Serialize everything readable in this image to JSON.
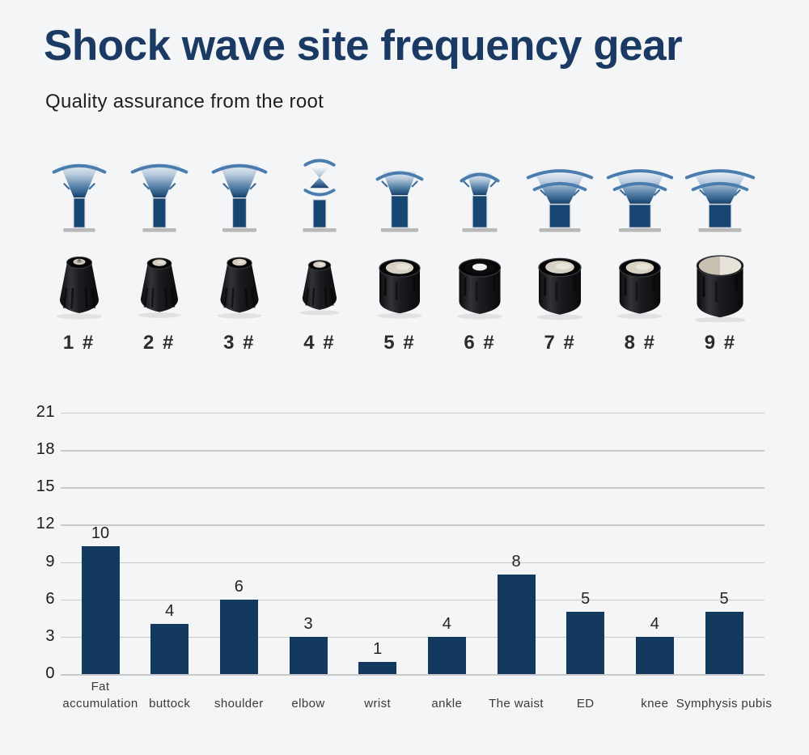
{
  "colors": {
    "background": "#f4f5f6",
    "title": "#1b3a63",
    "subtitle": "#1f1f1f",
    "bar": "#14395f",
    "gridline": "#c9c9c9",
    "axis_text": "#1a1a1a",
    "arc_blue": "#4a7cae",
    "fan_dark": "#16426e",
    "fan_light": "#f3f7fa",
    "stem_navy": "#174673",
    "base_gray": "#b8b8b8",
    "knob_black": "#1a1a1c",
    "metal_face": "#d8d2c4"
  },
  "header": {
    "title": "Shock wave site frequency gear",
    "subtitle": "Quality assurance from the root"
  },
  "heads": [
    {
      "label": "1 #",
      "wave": {
        "name": "narrow-spread-wave-icon",
        "type": "fan",
        "arcs": 1,
        "span": 64,
        "fanTop": 48,
        "fanBot": 14,
        "fanH": 40,
        "stemW": 14,
        "stemH": 37
      },
      "knob": {
        "shape": "tapered",
        "tip": "metal-point",
        "scale": 1.0
      }
    },
    {
      "label": "2 #",
      "wave": {
        "name": "narrow-spread-wave-icon",
        "type": "fan",
        "arcs": 1,
        "span": 68,
        "fanTop": 52,
        "fanBot": 15,
        "fanH": 40,
        "stemW": 16,
        "stemH": 37
      },
      "knob": {
        "shape": "tapered",
        "tip": "metal-small",
        "scale": 0.96
      }
    },
    {
      "label": "3 #",
      "wave": {
        "name": "narrow-spread-wave-icon",
        "type": "fan",
        "arcs": 1,
        "span": 66,
        "fanTop": 50,
        "fanBot": 16,
        "fanH": 40,
        "stemW": 17,
        "stemH": 37
      },
      "knob": {
        "shape": "tapered",
        "tip": "metal-small",
        "scale": 0.98
      }
    },
    {
      "label": "4 #",
      "wave": {
        "name": "focused-wave-icon",
        "type": "focused",
        "stemW": 16,
        "stemH": 35
      },
      "knob": {
        "shape": "tapered",
        "tip": "metal-small",
        "scale": 0.88
      }
    },
    {
      "label": "5 #",
      "wave": {
        "name": "medium-spread-wave-icon",
        "type": "fan",
        "arcs": 1,
        "span": 56,
        "fanTop": 42,
        "fanBot": 20,
        "fanH": 28,
        "stemW": 21,
        "stemH": 40
      },
      "knob": {
        "shape": "cylinder",
        "tip": "metal-large",
        "scale": 0.98
      }
    },
    {
      "label": "6 #",
      "wave": {
        "name": "small-spread-wave-icon",
        "type": "fan",
        "arcs": 1,
        "span": 46,
        "fanTop": 32,
        "fanBot": 16,
        "fanH": 26,
        "stemW": 18,
        "stemH": 40
      },
      "knob": {
        "shape": "cylinder",
        "tip": "white-dot",
        "scale": 1.0
      }
    },
    {
      "label": "7 #",
      "wave": {
        "name": "wide-spread-wave-icon",
        "type": "fan",
        "arcs": 2,
        "span": 80,
        "fanTop": 64,
        "fanBot": 24,
        "fanH": 38,
        "stemW": 26,
        "stemH": 29
      },
      "knob": {
        "shape": "cylinder",
        "tip": "metal-large",
        "scale": 1.02
      }
    },
    {
      "label": "8 #",
      "wave": {
        "name": "wide-spread-wave-icon",
        "type": "fan",
        "arcs": 2,
        "span": 80,
        "fanTop": 62,
        "fanBot": 25,
        "fanH": 38,
        "stemW": 27,
        "stemH": 29
      },
      "knob": {
        "shape": "cylinder",
        "tip": "metal-large",
        "scale": 0.99
      }
    },
    {
      "label": "9 #",
      "wave": {
        "name": "wide-spread-wave-icon",
        "type": "fan",
        "arcs": 2,
        "span": 84,
        "fanTop": 66,
        "fanBot": 26,
        "fanH": 38,
        "stemW": 28,
        "stemH": 29
      },
      "knob": {
        "shape": "cylinder",
        "tip": "metal-full",
        "scale": 1.12
      }
    }
  ],
  "chart_data": {
    "type": "bar",
    "title": "",
    "xlabel": "",
    "ylabel": "",
    "categories": [
      "Fat accumulation",
      "buttock",
      "shoulder",
      "elbow",
      "wrist",
      "ankle",
      "The waist",
      "ED",
      "knee",
      "Symphysis pubis"
    ],
    "tick_labels": [
      "Fat\naccumulation",
      "buttock",
      "shoulder",
      "elbow",
      "wrist",
      "ankle",
      "The waist",
      "ED",
      "knee",
      "Symphysis pubis"
    ],
    "values": [
      10,
      4,
      6,
      3,
      1,
      4,
      8,
      5,
      4,
      5
    ],
    "bar_drawn_heights": [
      10.25,
      4,
      6,
      3,
      1,
      3,
      8,
      5,
      3,
      5
    ],
    "yticks": [
      0,
      3,
      6,
      9,
      12,
      15,
      18,
      21
    ],
    "ylim": [
      0,
      21.5
    ],
    "grid": true,
    "legend": false,
    "bar_color": "#14395f"
  }
}
